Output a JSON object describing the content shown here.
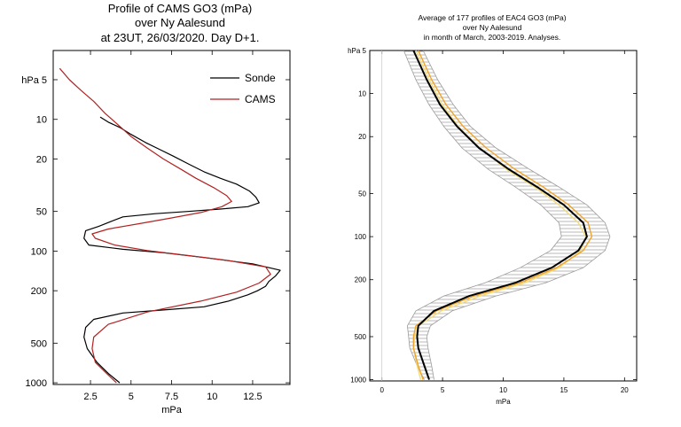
{
  "colors": {
    "sonde": "#000000",
    "cams": "#b22222",
    "orange": "#f0a52a",
    "yellow": "#f3dc7c",
    "black": "#000000",
    "hatch": "#aaaaaa"
  },
  "chart_data": [
    {
      "type": "line",
      "title_lines": [
        "Profile of CAMS GO3 (mPa)",
        "over Ny Aalesund",
        "at 23UT, 26/03/2020. Day D+1."
      ],
      "xlabel": "mPa",
      "ylabel": "hPa",
      "xlim": [
        0.2,
        14.8
      ],
      "ylim": [
        1030,
        3
      ],
      "y_scale": "log",
      "x_ticks": [
        2.5,
        5,
        7.5,
        10,
        12.5
      ],
      "x_tick_labels": [
        "2.5",
        "5",
        "7.5",
        "10",
        "12.5"
      ],
      "y_ticks": [
        5,
        10,
        20,
        50,
        100,
        200,
        500,
        1000
      ],
      "y_tick_labels": [
        "hPa 5",
        "10",
        "20",
        "50",
        "100",
        "200",
        "500",
        "1000"
      ],
      "legend_position": "top-right",
      "series": [
        {
          "name": "Sonde",
          "color_key": "sonde",
          "points": [
            [
              4.3,
              1000
            ],
            [
              3.6,
              850
            ],
            [
              2.9,
              700
            ],
            [
              2.3,
              550
            ],
            [
              2.1,
              450
            ],
            [
              2.2,
              380
            ],
            [
              2.7,
              330
            ],
            [
              4.5,
              295
            ],
            [
              7.0,
              280
            ],
            [
              9.5,
              265
            ],
            [
              11.0,
              240
            ],
            [
              12.2,
              215
            ],
            [
              12.8,
              200
            ],
            [
              13.3,
              185
            ],
            [
              13.5,
              170
            ],
            [
              13.9,
              155
            ],
            [
              14.2,
              140
            ],
            [
              12.5,
              125
            ],
            [
              9.5,
              112
            ],
            [
              7.0,
              103
            ],
            [
              4.5,
              97
            ],
            [
              2.4,
              90
            ],
            [
              2.1,
              80
            ],
            [
              2.2,
              70
            ],
            [
              3.0,
              65
            ],
            [
              3.7,
              60
            ],
            [
              4.5,
              55
            ],
            [
              6.5,
              52
            ],
            [
              8.5,
              50
            ],
            [
              10.5,
              48
            ],
            [
              12.2,
              46
            ],
            [
              12.9,
              43
            ],
            [
              12.7,
              39
            ],
            [
              12.3,
              35
            ],
            [
              11.5,
              31
            ],
            [
              10.5,
              28
            ],
            [
              9.5,
              25
            ],
            [
              8.6,
              22
            ],
            [
              7.6,
              19
            ],
            [
              6.8,
              17
            ],
            [
              5.9,
              15
            ],
            [
              5.0,
              13
            ],
            [
              4.3,
              11.5
            ],
            [
              3.6,
              10.5
            ],
            [
              3.1,
              9.6
            ]
          ]
        },
        {
          "name": "CAMS",
          "color_key": "cams",
          "points": [
            [
              4.1,
              1000
            ],
            [
              3.5,
              850
            ],
            [
              2.8,
              700
            ],
            [
              2.6,
              550
            ],
            [
              2.7,
              450
            ],
            [
              3.6,
              360
            ],
            [
              6.0,
              290
            ],
            [
              9.3,
              240
            ],
            [
              11.5,
              205
            ],
            [
              12.9,
              175
            ],
            [
              13.6,
              150
            ],
            [
              13.3,
              132
            ],
            [
              11.0,
              118
            ],
            [
              8.5,
              108
            ],
            [
              6.0,
              99
            ],
            [
              4.0,
              90
            ],
            [
              2.8,
              80
            ],
            [
              2.6,
              74
            ],
            [
              3.6,
              68
            ],
            [
              5.5,
              62
            ],
            [
              7.5,
              56
            ],
            [
              9.3,
              51
            ],
            [
              10.6,
              46
            ],
            [
              11.2,
              42
            ],
            [
              10.9,
              38
            ],
            [
              10.1,
              33
            ],
            [
              9.0,
              28
            ],
            [
              8.1,
              24
            ],
            [
              7.0,
              20
            ],
            [
              6.0,
              16.5
            ],
            [
              5.0,
              13.5
            ],
            [
              4.2,
              11
            ],
            [
              3.4,
              9
            ],
            [
              2.7,
              7.3
            ],
            [
              1.9,
              6
            ],
            [
              1.2,
              5
            ],
            [
              0.6,
              4.1
            ]
          ]
        }
      ]
    },
    {
      "type": "line",
      "title_lines": [
        "Average of 177 profiles of EAC4 GO3 (mPa)",
        "over Ny Aalesund",
        "in month of March, 2003-2019. Analyses."
      ],
      "xlabel": "mPa",
      "ylabel": "hPa",
      "xlim": [
        -1,
        21
      ],
      "ylim": [
        1020,
        5
      ],
      "y_scale": "log",
      "x_ticks": [
        0,
        5,
        10,
        15,
        20
      ],
      "x_tick_labels": [
        "0",
        "5",
        "10",
        "15",
        "20"
      ],
      "y_ticks": [
        5,
        10,
        20,
        50,
        100,
        200,
        500,
        1000
      ],
      "y_tick_labels": [
        "hPa 5",
        "10",
        "20",
        "50",
        "100",
        "200",
        "500",
        "1000"
      ],
      "series": [
        {
          "name": "",
          "color_key": "black",
          "points": [
            [
              3.9,
              1000
            ],
            [
              3.5,
              800
            ],
            [
              3.0,
              600
            ],
            [
              2.9,
              500
            ],
            [
              3.0,
              420
            ],
            [
              4.3,
              330
            ],
            [
              7.2,
              260
            ],
            [
              11.0,
              210
            ],
            [
              14.0,
              165
            ],
            [
              16.2,
              125
            ],
            [
              16.9,
              100
            ],
            [
              16.6,
              80
            ],
            [
              15.0,
              60
            ],
            [
              12.8,
              45
            ],
            [
              10.5,
              34
            ],
            [
              8.0,
              24
            ],
            [
              6.2,
              17
            ],
            [
              4.8,
              12
            ],
            [
              3.7,
              8
            ],
            [
              2.6,
              5
            ]
          ]
        },
        {
          "name": "",
          "color_key": "orange",
          "points": [
            [
              3.4,
              1000
            ],
            [
              3.0,
              800
            ],
            [
              2.6,
              600
            ],
            [
              2.6,
              500
            ],
            [
              2.8,
              420
            ],
            [
              4.5,
              330
            ],
            [
              7.6,
              260
            ],
            [
              11.4,
              210
            ],
            [
              14.4,
              165
            ],
            [
              16.6,
              125
            ],
            [
              17.3,
              100
            ],
            [
              17.0,
              80
            ],
            [
              15.4,
              60
            ],
            [
              13.3,
              45
            ],
            [
              11.0,
              34
            ],
            [
              8.6,
              24
            ],
            [
              6.7,
              17
            ],
            [
              5.3,
              12
            ],
            [
              4.1,
              8
            ],
            [
              3.0,
              5
            ]
          ]
        },
        {
          "name": "",
          "color_key": "yellow",
          "points": [
            [
              3.2,
              1000
            ],
            [
              2.9,
              800
            ],
            [
              2.6,
              600
            ],
            [
              2.7,
              500
            ],
            [
              3.0,
              420
            ],
            [
              4.9,
              330
            ],
            [
              8.1,
              260
            ],
            [
              11.8,
              210
            ],
            [
              14.6,
              165
            ],
            [
              16.4,
              125
            ],
            [
              16.8,
              100
            ],
            [
              16.2,
              80
            ],
            [
              14.6,
              60
            ],
            [
              12.6,
              45
            ],
            [
              10.3,
              34
            ],
            [
              8.1,
              24
            ],
            [
              6.3,
              17
            ],
            [
              5.0,
              12
            ],
            [
              3.9,
              8
            ],
            [
              2.8,
              5
            ]
          ]
        },
        {
          "name": "",
          "color_key": "hatch",
          "role": "spread-upper",
          "points": [
            [
              4.3,
              1000
            ],
            [
              4.1,
              800
            ],
            [
              3.8,
              600
            ],
            [
              3.7,
              500
            ],
            [
              4.0,
              420
            ],
            [
              5.8,
              330
            ],
            [
              9.4,
              260
            ],
            [
              13.5,
              210
            ],
            [
              16.6,
              165
            ],
            [
              18.4,
              125
            ],
            [
              18.8,
              100
            ],
            [
              18.4,
              80
            ],
            [
              16.9,
              60
            ],
            [
              14.6,
              45
            ],
            [
              12.2,
              34
            ],
            [
              9.4,
              24
            ],
            [
              7.3,
              17
            ],
            [
              5.9,
              12
            ],
            [
              4.6,
              8
            ],
            [
              3.4,
              5
            ]
          ]
        },
        {
          "name": "",
          "color_key": "hatch",
          "role": "spread-lower",
          "points": [
            [
              3.5,
              1000
            ],
            [
              2.9,
              800
            ],
            [
              2.3,
              600
            ],
            [
              2.2,
              500
            ],
            [
              2.1,
              420
            ],
            [
              2.8,
              330
            ],
            [
              5.1,
              260
            ],
            [
              8.5,
              210
            ],
            [
              11.4,
              165
            ],
            [
              13.9,
              125
            ],
            [
              14.8,
              100
            ],
            [
              14.6,
              80
            ],
            [
              13.1,
              60
            ],
            [
              11.0,
              45
            ],
            [
              8.8,
              34
            ],
            [
              6.6,
              24
            ],
            [
              5.1,
              17
            ],
            [
              3.9,
              12
            ],
            [
              2.8,
              8
            ],
            [
              1.8,
              5
            ]
          ]
        }
      ]
    }
  ]
}
